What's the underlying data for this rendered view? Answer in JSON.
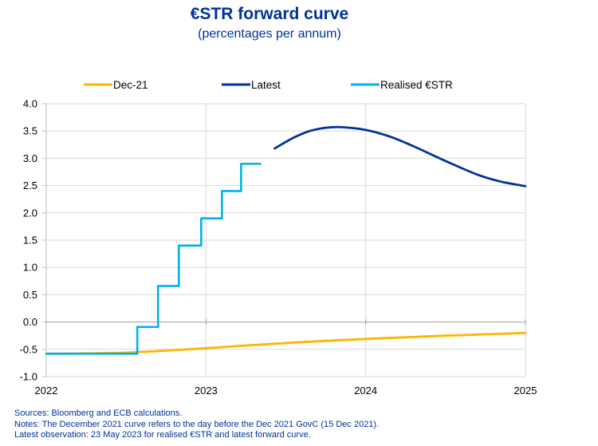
{
  "chart_data": {
    "type": "line",
    "title": "€STR forward curve",
    "subtitle": "(percentages per annum)",
    "xlabel": "",
    "ylabel": "",
    "xlim": [
      2022,
      2025
    ],
    "ylim": [
      -1.0,
      4.0
    ],
    "x_ticks": [
      "2022",
      "2023",
      "2024",
      "2025"
    ],
    "y_ticks": [
      "4.0",
      "3.5",
      "3.0",
      "2.5",
      "2.0",
      "1.5",
      "1.0",
      "0.5",
      "0.0",
      "-0.5",
      "-1.0"
    ],
    "grid": true,
    "legend_position": "top",
    "series": [
      {
        "name": "Dec-21",
        "color": "#FFB400",
        "style": "line",
        "x": [
          2022.0,
          2022.25,
          2022.5,
          2022.75,
          2023.0,
          2023.25,
          2023.5,
          2023.75,
          2024.0,
          2024.25,
          2024.5,
          2024.75,
          2025.0
        ],
        "y": [
          -0.58,
          -0.575,
          -0.56,
          -0.525,
          -0.48,
          -0.43,
          -0.385,
          -0.345,
          -0.31,
          -0.28,
          -0.25,
          -0.225,
          -0.2
        ]
      },
      {
        "name": "Latest",
        "color": "#003299",
        "style": "line",
        "x": [
          2023.43,
          2023.55,
          2023.65,
          2023.75,
          2023.85,
          2024.0,
          2024.15,
          2024.3,
          2024.5,
          2024.7,
          2024.85,
          2025.0
        ],
        "y": [
          3.18,
          3.38,
          3.5,
          3.56,
          3.57,
          3.52,
          3.4,
          3.22,
          2.95,
          2.7,
          2.57,
          2.49
        ]
      },
      {
        "name": "Realised €STR",
        "color": "#00B1EA",
        "style": "step",
        "x": [
          2022.0,
          2022.57,
          2022.57,
          2022.7,
          2022.7,
          2022.83,
          2022.83,
          2022.97,
          2022.97,
          2023.1,
          2023.1,
          2023.22,
          2023.22,
          2023.34
        ],
        "y": [
          -0.58,
          -0.58,
          -0.09,
          -0.09,
          0.66,
          0.66,
          1.4,
          1.4,
          1.9,
          1.9,
          2.4,
          2.4,
          2.9,
          2.9
        ]
      }
    ]
  },
  "notes": {
    "sources": "Sources: Bloomberg and ECB calculations.",
    "notes": "Notes: The December 2021 curve refers to the day before the Dec 2021 GovC (15 Dec 2021).",
    "latest": "Latest observation: 23 May 2023 for realised €STR and latest forward curve."
  }
}
